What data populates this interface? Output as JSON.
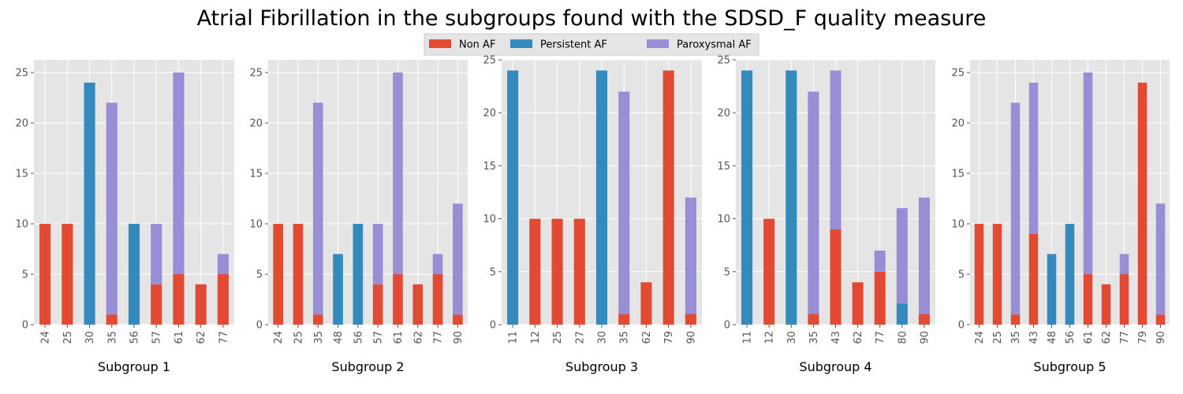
{
  "chart_data": {
    "type": "bar",
    "stacked": true,
    "title": "Atrial Fibrillation in the subgroups found with the SDSD_F quality measure",
    "legend": {
      "placement": "top-center",
      "entries": [
        {
          "label": "Non AF",
          "color": "#E24A33"
        },
        {
          "label": "Persistent AF",
          "color": "#348ABD"
        },
        {
          "label": "Paroxysmal AF",
          "color": "#988ED5"
        }
      ]
    },
    "grid": true,
    "subplots": [
      {
        "xlabel": "Subgroup 1",
        "ylim": [
          0,
          26.25
        ],
        "yticks": [
          0,
          5,
          10,
          15,
          20,
          25
        ],
        "categories": [
          "24",
          "25",
          "30",
          "35",
          "56",
          "57",
          "61",
          "62",
          "77"
        ],
        "series": [
          {
            "name": "Non AF",
            "values": [
              10,
              10,
              0,
              1,
              0,
              4,
              5,
              4,
              5
            ]
          },
          {
            "name": "Persistent AF",
            "values": [
              0,
              0,
              24,
              0,
              10,
              0,
              0,
              0,
              0
            ]
          },
          {
            "name": "Paroxysmal AF",
            "values": [
              0,
              0,
              0,
              21,
              0,
              6,
              20,
              0,
              2
            ]
          }
        ]
      },
      {
        "xlabel": "Subgroup 2",
        "ylim": [
          0,
          26.25
        ],
        "yticks": [
          0,
          5,
          10,
          15,
          20,
          25
        ],
        "categories": [
          "24",
          "25",
          "35",
          "48",
          "56",
          "57",
          "61",
          "62",
          "77",
          "90"
        ],
        "series": [
          {
            "name": "Non AF",
            "values": [
              10,
              10,
              1,
              0,
              0,
              4,
              5,
              4,
              5,
              1
            ]
          },
          {
            "name": "Persistent AF",
            "values": [
              0,
              0,
              0,
              7,
              10,
              0,
              0,
              0,
              0,
              0
            ]
          },
          {
            "name": "Paroxysmal AF",
            "values": [
              0,
              0,
              21,
              0,
              0,
              6,
              20,
              0,
              2,
              11
            ]
          }
        ]
      },
      {
        "xlabel": "Subgroup 3",
        "ylim": [
          0,
          25
        ],
        "yticks": [
          0,
          5,
          10,
          15,
          20,
          25
        ],
        "categories": [
          "11",
          "12",
          "25",
          "27",
          "30",
          "35",
          "62",
          "79",
          "90"
        ],
        "series": [
          {
            "name": "Non AF",
            "values": [
              0,
              10,
              10,
              10,
              0,
              1,
              4,
              24,
              1
            ]
          },
          {
            "name": "Persistent AF",
            "values": [
              24,
              0,
              0,
              0,
              24,
              0,
              0,
              0,
              0
            ]
          },
          {
            "name": "Paroxysmal AF",
            "values": [
              0,
              0,
              0,
              0,
              0,
              21,
              0,
              0,
              11
            ]
          }
        ]
      },
      {
        "xlabel": "Subgroup 4",
        "ylim": [
          0,
          25
        ],
        "yticks": [
          0,
          5,
          10,
          15,
          20,
          25
        ],
        "categories": [
          "11",
          "12",
          "30",
          "35",
          "43",
          "62",
          "77",
          "80",
          "90"
        ],
        "series": [
          {
            "name": "Non AF",
            "values": [
              0,
              10,
              0,
              1,
              9,
              4,
              5,
              0,
              1
            ]
          },
          {
            "name": "Persistent AF",
            "values": [
              24,
              0,
              24,
              0,
              0,
              0,
              0,
              2,
              0
            ]
          },
          {
            "name": "Paroxysmal AF",
            "values": [
              0,
              0,
              0,
              21,
              15,
              0,
              2,
              9,
              11
            ]
          }
        ]
      },
      {
        "xlabel": "Subgroup 5",
        "ylim": [
          0,
          26.25
        ],
        "yticks": [
          0,
          5,
          10,
          15,
          20,
          25
        ],
        "categories": [
          "24",
          "25",
          "35",
          "43",
          "48",
          "56",
          "61",
          "62",
          "77",
          "79",
          "90"
        ],
        "series": [
          {
            "name": "Non AF",
            "values": [
              10,
              10,
              1,
              9,
              0,
              0,
              5,
              4,
              5,
              24,
              1
            ]
          },
          {
            "name": "Persistent AF",
            "values": [
              0,
              0,
              0,
              0,
              7,
              10,
              0,
              0,
              0,
              0,
              0
            ]
          },
          {
            "name": "Paroxysmal AF",
            "values": [
              0,
              0,
              21,
              15,
              0,
              0,
              20,
              0,
              2,
              0,
              11
            ]
          }
        ]
      }
    ]
  }
}
